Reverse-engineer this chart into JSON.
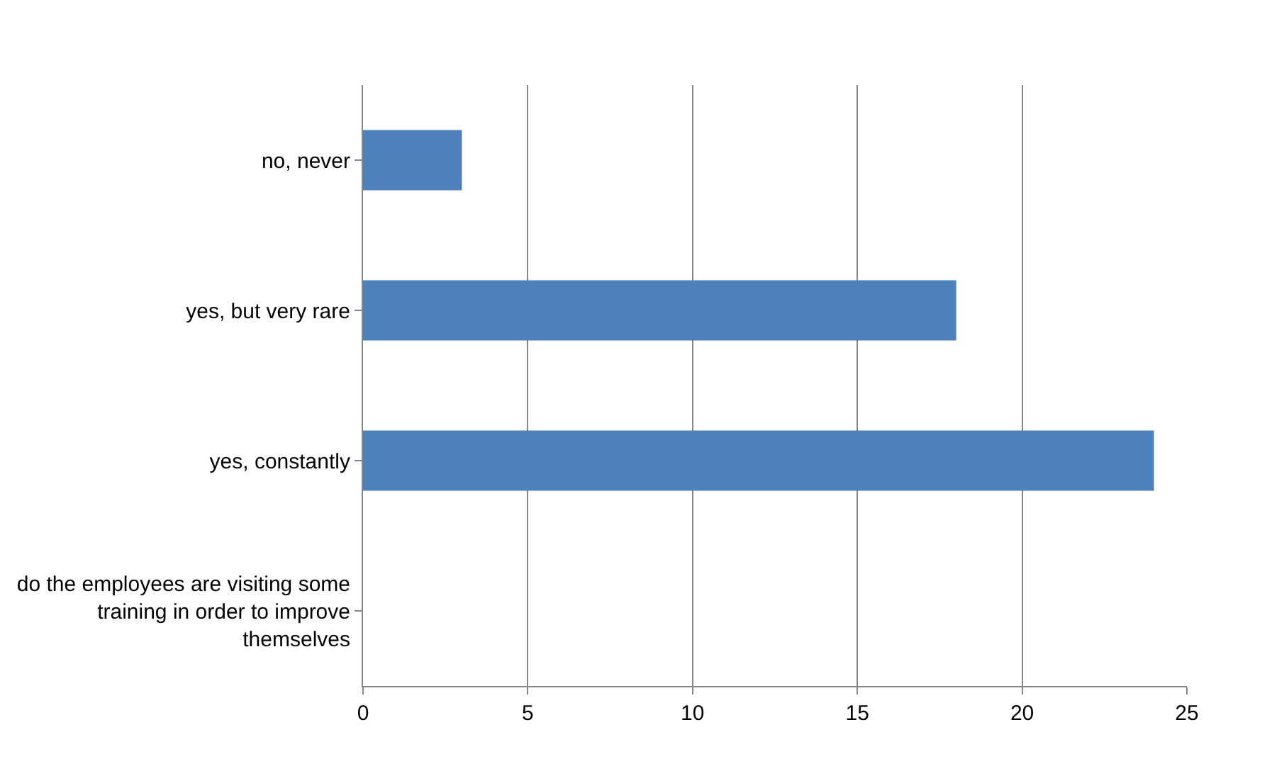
{
  "chart_data": {
    "type": "bar",
    "orientation": "horizontal",
    "categories": [
      "no, never",
      "yes, but very rare",
      "yes, constantly",
      "do the employees are visiting some training in order to improve themselves"
    ],
    "values": [
      3,
      18,
      24,
      null
    ],
    "color": "#4f81bd",
    "xlim": [
      0,
      25
    ],
    "xticks": [
      0,
      5,
      10,
      15,
      20,
      25
    ],
    "grid": "x",
    "legend": false
  }
}
